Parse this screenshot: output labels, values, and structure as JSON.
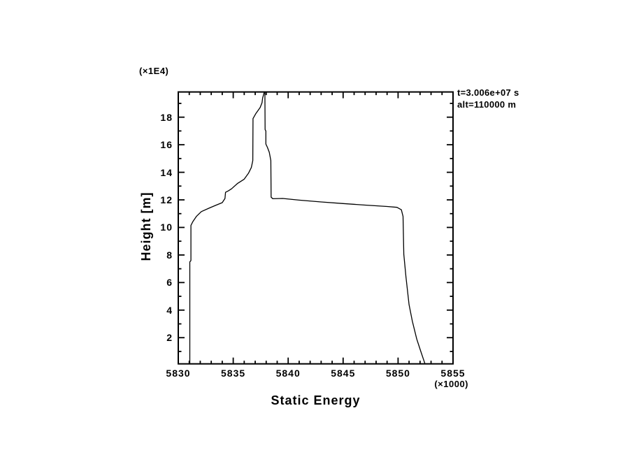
{
  "colors": {
    "ink": "#000000",
    "background": "#ffffff"
  },
  "chart_data": {
    "type": "line",
    "title": "",
    "xlabel": "Static Energy",
    "ylabel": "Height [m]",
    "x_unit_label": "(×1000)",
    "y_unit_label": "(×1E4)",
    "annotation": {
      "line1": "t=3.006e+07 s",
      "line2": "alt=110000 m"
    },
    "grid": false,
    "x_axis": {
      "min": 5830,
      "max": 5855,
      "major_ticks": [
        5830,
        5835,
        5840,
        5845,
        5850,
        5855
      ],
      "major_tick_labels": [
        "5830",
        "5835",
        "5840",
        "5845",
        "5850",
        "5855"
      ],
      "minor_ticks": [
        5831,
        5832,
        5833,
        5834,
        5836,
        5837,
        5838,
        5839,
        5841,
        5842,
        5843,
        5844,
        5846,
        5847,
        5848,
        5849,
        5851,
        5852,
        5853,
        5854
      ]
    },
    "y_axis": {
      "min": 0.1,
      "max": 19.83,
      "major_ticks": [
        2,
        4,
        6,
        8,
        10,
        12,
        14,
        16,
        18
      ],
      "major_tick_labels": [
        "2",
        "4",
        "6",
        "8",
        "10",
        "12",
        "14",
        "16",
        "18"
      ],
      "minor_ticks": [
        1,
        3,
        5,
        7,
        9,
        11,
        13,
        15,
        17,
        19
      ]
    },
    "series": [
      {
        "name": "static-energy-profile",
        "color": "#000000",
        "points": [
          [
            5831.05,
            0.1
          ],
          [
            5831.05,
            7.5
          ],
          [
            5831.15,
            7.6
          ],
          [
            5831.15,
            10.15
          ],
          [
            5831.35,
            10.45
          ],
          [
            5831.65,
            10.8
          ],
          [
            5832.1,
            11.15
          ],
          [
            5832.8,
            11.4
          ],
          [
            5833.4,
            11.6
          ],
          [
            5834.0,
            11.8
          ],
          [
            5834.25,
            12.1
          ],
          [
            5834.3,
            12.55
          ],
          [
            5834.55,
            12.65
          ],
          [
            5834.85,
            12.8
          ],
          [
            5835.4,
            13.2
          ],
          [
            5836.0,
            13.5
          ],
          [
            5836.4,
            13.95
          ],
          [
            5836.65,
            14.35
          ],
          [
            5836.78,
            14.85
          ],
          [
            5836.8,
            17.9
          ],
          [
            5837.05,
            18.25
          ],
          [
            5837.45,
            18.7
          ],
          [
            5837.62,
            19.05
          ],
          [
            5837.68,
            19.4
          ],
          [
            5837.78,
            19.68
          ],
          [
            5837.82,
            19.83
          ],
          [
            5837.88,
            19.83
          ],
          [
            5837.9,
            17.1
          ],
          [
            5837.97,
            17.0
          ],
          [
            5837.97,
            16.05
          ],
          [
            5838.12,
            15.8
          ],
          [
            5838.28,
            15.45
          ],
          [
            5838.42,
            14.85
          ],
          [
            5838.45,
            12.2
          ],
          [
            5838.6,
            12.08
          ],
          [
            5839.5,
            12.1
          ],
          [
            5841.0,
            11.98
          ],
          [
            5843.0,
            11.85
          ],
          [
            5845.0,
            11.73
          ],
          [
            5847.0,
            11.62
          ],
          [
            5849.0,
            11.52
          ],
          [
            5849.9,
            11.46
          ],
          [
            5850.3,
            11.28
          ],
          [
            5850.45,
            10.8
          ],
          [
            5850.52,
            8.05
          ],
          [
            5850.72,
            6.4
          ],
          [
            5851.0,
            4.4
          ],
          [
            5851.3,
            3.2
          ],
          [
            5851.7,
            1.9
          ],
          [
            5852.05,
            1.05
          ],
          [
            5852.45,
            0.1
          ]
        ]
      }
    ]
  }
}
